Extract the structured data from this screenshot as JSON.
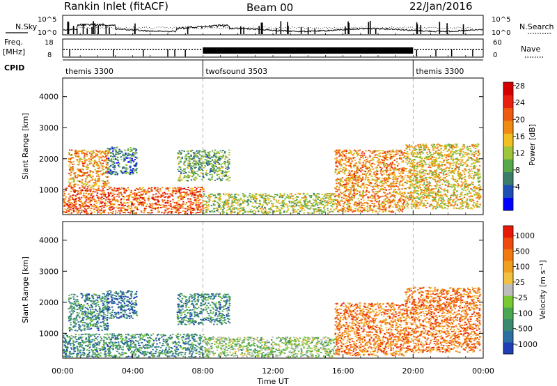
{
  "header": {
    "station": "Rankin Inlet (fitACF)",
    "beam": "Beam 00",
    "date": "22/Jan/2016"
  },
  "panels": {
    "nsky": {
      "label": "N.Sky",
      "ticks": [
        "10^5",
        "10^0"
      ]
    },
    "nsearch": {
      "label": "N.Search",
      "ticks": [
        "10^5",
        "10^0"
      ]
    },
    "freq": {
      "label_top": "Freq.",
      "label_bottom": "[MHz]",
      "ticks": [
        "18",
        "8"
      ]
    },
    "nave": {
      "label": "Nave",
      "ticks": [
        "60",
        "0"
      ]
    },
    "cpid": {
      "label": "CPID",
      "segments": [
        {
          "name": "themis 3300",
          "start_hour": 0,
          "end_hour": 8.0
        },
        {
          "name": "twofsound 3503",
          "start_hour": 8.0,
          "end_hour": 20.0
        },
        {
          "name": "themis 3300",
          "start_hour": 20.0,
          "end_hour": 24
        }
      ]
    }
  },
  "chart_data": [
    {
      "type": "heatmap",
      "name": "power",
      "ylabel": "Slant Range [km]",
      "yticks": [
        "1000",
        "2000",
        "3000",
        "4000"
      ],
      "ytick_values": [
        1000,
        2000,
        3000,
        4000
      ],
      "ylim": [
        200,
        4600
      ],
      "xlim_hours": [
        0,
        24
      ],
      "colorbar": {
        "label": "Power [dB]",
        "ticks": [
          "4",
          "8",
          "12",
          "16",
          "20",
          "24",
          "28"
        ],
        "colors": [
          "#0000ff",
          "#1f4fb4",
          "#3c7d6a",
          "#57a84a",
          "#9fc63a",
          "#f0c020",
          "#f08a12",
          "#ee5a10",
          "#e82010",
          "#d40000"
        ]
      },
      "regions": [
        {
          "start_hour": 0.0,
          "end_hour": 8.0,
          "min_km": 250,
          "max_km": 1100,
          "level": 7
        },
        {
          "start_hour": 0.3,
          "end_hour": 2.6,
          "min_km": 1100,
          "max_km": 2300,
          "level": 6
        },
        {
          "start_hour": 2.5,
          "end_hour": 4.2,
          "min_km": 1500,
          "max_km": 2400,
          "level": 2
        },
        {
          "start_hour": 6.5,
          "end_hour": 9.5,
          "min_km": 1300,
          "max_km": 2300,
          "level": 3
        },
        {
          "start_hour": 8.0,
          "end_hour": 15.5,
          "min_km": 250,
          "max_km": 900,
          "level": 4
        },
        {
          "start_hour": 15.5,
          "end_hour": 19.5,
          "min_km": 300,
          "max_km": 2300,
          "level": 6
        },
        {
          "start_hour": 19.5,
          "end_hour": 23.8,
          "min_km": 400,
          "max_km": 2500,
          "level": 5
        }
      ]
    },
    {
      "type": "heatmap",
      "name": "velocity",
      "ylabel": "Slant Range [km]",
      "yticks": [
        "1000",
        "2000",
        "3000",
        "4000"
      ],
      "ytick_values": [
        1000,
        2000,
        3000,
        4000
      ],
      "ylim": [
        200,
        4600
      ],
      "xlim_hours": [
        0,
        24
      ],
      "xticks": [
        "00:00",
        "04:00",
        "08:00",
        "12:00",
        "16:00",
        "20:00",
        "00:00"
      ],
      "xtick_hours": [
        0,
        4,
        8,
        12,
        16,
        20,
        24
      ],
      "xlabel": "Time UT",
      "colorbar": {
        "label": "Velocity [m s⁻¹]",
        "ticks": [
          "1000",
          "500",
          "100",
          "25",
          "-25",
          "-100",
          "-500",
          "-1000"
        ],
        "colors": [
          "#1f3fb4",
          "#2c6fa0",
          "#3a8a70",
          "#4ca850",
          "#7ac832",
          "#bdbdbd",
          "#f0c040",
          "#f0a020",
          "#f07a10",
          "#ee4a10",
          "#e81808"
        ]
      },
      "regions": [
        {
          "start_hour": 0.0,
          "end_hour": 8.0,
          "min_km": 250,
          "max_km": 1000,
          "level": 2
        },
        {
          "start_hour": 0.3,
          "end_hour": 2.6,
          "min_km": 1100,
          "max_km": 2300,
          "level": 2
        },
        {
          "start_hour": 2.5,
          "end_hour": 4.2,
          "min_km": 1500,
          "max_km": 2400,
          "level": 1
        },
        {
          "start_hour": 6.5,
          "end_hour": 9.5,
          "min_km": 1300,
          "max_km": 2300,
          "level": 2
        },
        {
          "start_hour": 8.0,
          "end_hour": 15.5,
          "min_km": 250,
          "max_km": 900,
          "level": 4
        },
        {
          "start_hour": 15.5,
          "end_hour": 19.5,
          "min_km": 300,
          "max_km": 2000,
          "level": 8
        },
        {
          "start_hour": 19.5,
          "end_hour": 23.8,
          "min_km": 400,
          "max_km": 2500,
          "level": 8
        }
      ]
    }
  ]
}
